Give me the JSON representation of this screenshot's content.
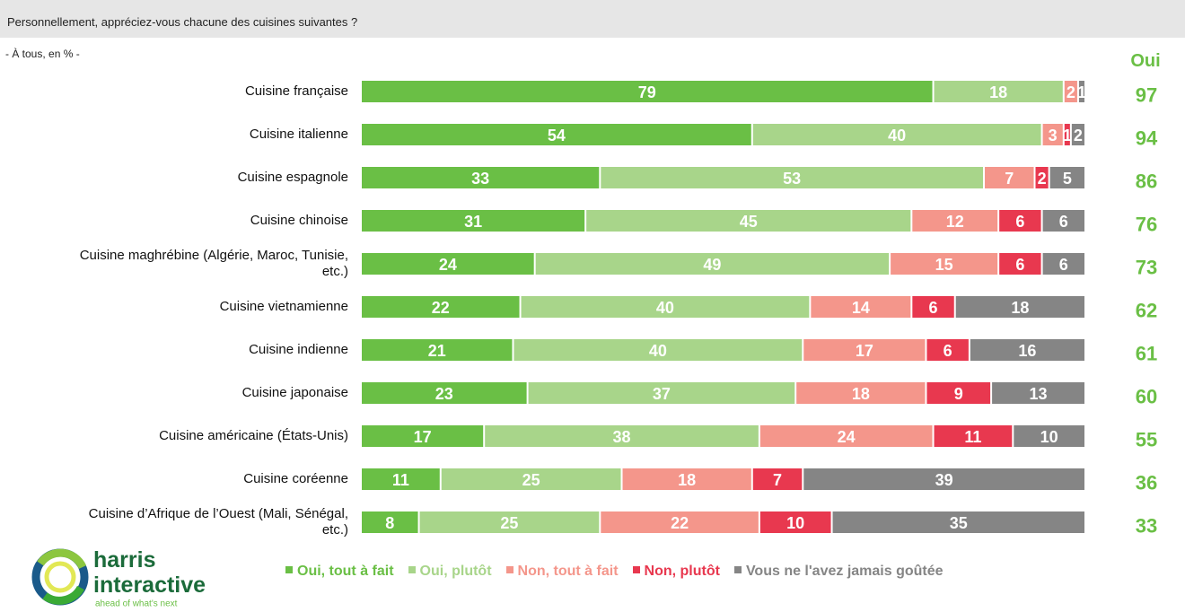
{
  "chart_data": {
    "type": "stacked-bar",
    "title": "Personnellement, appréciez-vous chacune des cuisines suivantes ?",
    "subtitle": "- À tous, en % -",
    "categories": [
      "Cuisine française",
      "Cuisine italienne",
      "Cuisine espagnole",
      "Cuisine chinoise",
      "Cuisine maghrébine (Algérie, Maroc, Tunisie, etc.)",
      "Cuisine vietnamienne",
      "Cuisine indienne",
      "Cuisine japonaise",
      "Cuisine américaine (États-Unis)",
      "Cuisine coréenne",
      "Cuisine d’Afrique de l’Ouest (Mali, Sénégal, etc.)"
    ],
    "series": [
      {
        "name": "Oui, tout à fait",
        "color": "#6abf45",
        "values": [
          79,
          54,
          33,
          31,
          24,
          22,
          21,
          23,
          17,
          11,
          8
        ]
      },
      {
        "name": "Oui, plutôt",
        "color": "#a8d58a",
        "values": [
          18,
          40,
          53,
          45,
          49,
          40,
          40,
          37,
          38,
          25,
          25
        ]
      },
      {
        "name": "Non, tout à fait",
        "color": "#f4968b",
        "values": [
          2,
          3,
          7,
          12,
          15,
          14,
          17,
          18,
          24,
          18,
          22
        ]
      },
      {
        "name": "Non, plutôt",
        "color": "#e8384f",
        "values": [
          null,
          1,
          2,
          6,
          6,
          6,
          6,
          9,
          11,
          7,
          10
        ]
      },
      {
        "name": "Vous ne l'avez jamais goûtée",
        "color": "#858585",
        "values": [
          1,
          2,
          5,
          6,
          6,
          18,
          16,
          13,
          10,
          39,
          35
        ]
      }
    ],
    "xlim": [
      0,
      100
    ],
    "oui_header": "Oui",
    "oui_values": [
      97,
      94,
      86,
      76,
      73,
      62,
      61,
      60,
      55,
      36,
      33
    ],
    "oui_color": "#6abf45"
  },
  "logo": {
    "name": "harris",
    "name2": "interactive",
    "tagline": "ahead of what's next"
  }
}
